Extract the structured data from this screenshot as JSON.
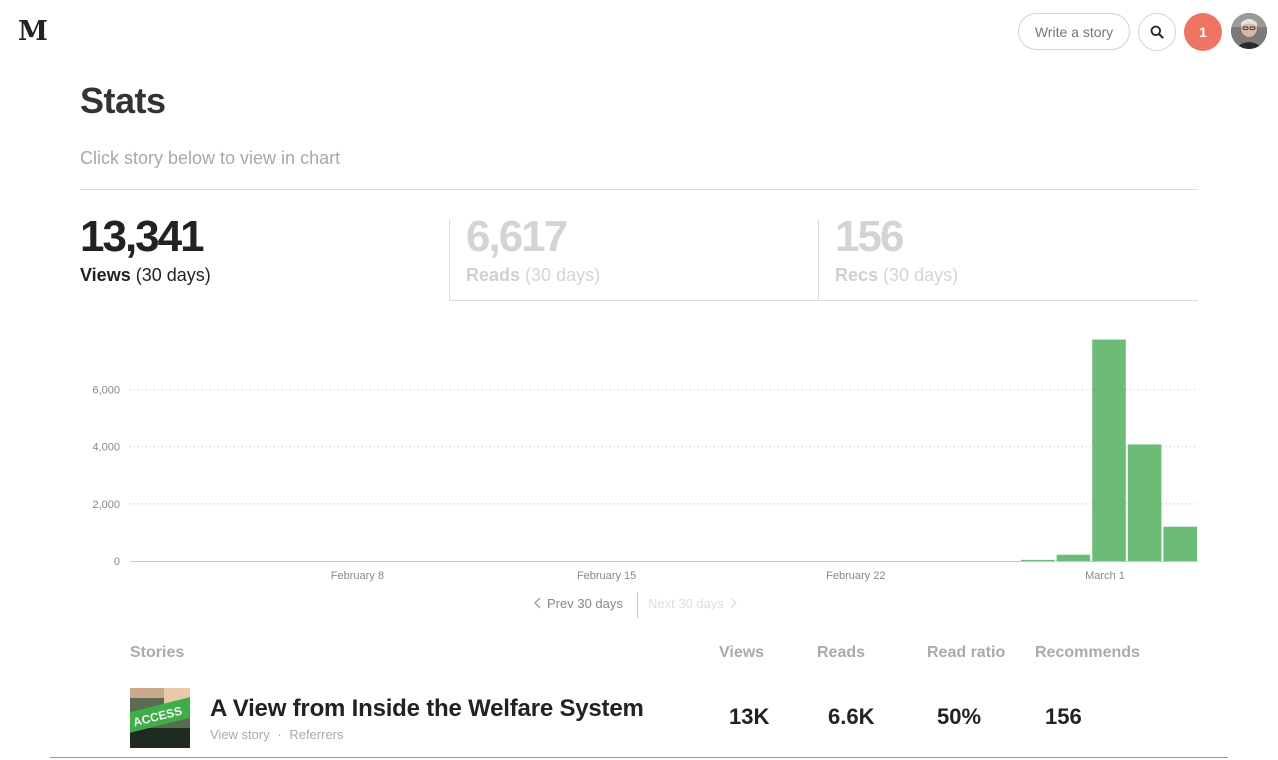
{
  "header": {
    "logo": "M",
    "write_label": "Write a story",
    "notification_count": "1",
    "icons": {
      "search": "search-icon",
      "avatar": "user-avatar"
    }
  },
  "page": {
    "title": "Stats",
    "subtitle": "Click story below to view in chart"
  },
  "stat_tabs": [
    {
      "value": "13,341",
      "label": "Views",
      "period": "(30 days)",
      "active": true
    },
    {
      "value": "6,617",
      "label": "Reads",
      "period": "(30 days)",
      "active": false
    },
    {
      "value": "156",
      "label": "Recs",
      "period": "(30 days)",
      "active": false
    }
  ],
  "chart_data": {
    "type": "bar",
    "title": "",
    "xlabel": "",
    "ylabel": "",
    "ylim": [
      0,
      7700
    ],
    "y_ticks": [
      0,
      2000,
      4000,
      6000
    ],
    "y_tick_labels": [
      "0",
      "2,000",
      "4,000",
      "6,000"
    ],
    "x_tick_labels": [
      "February 8",
      "February 15",
      "February 22",
      "March 1"
    ],
    "grid": true,
    "bar_color": "#6cbb77",
    "categories": [
      "Feb 1",
      "Feb 2",
      "Feb 3",
      "Feb 4",
      "Feb 5",
      "Feb 6",
      "Feb 7",
      "Feb 8",
      "Feb 9",
      "Feb 10",
      "Feb 11",
      "Feb 12",
      "Feb 13",
      "Feb 14",
      "Feb 15",
      "Feb 16",
      "Feb 17",
      "Feb 18",
      "Feb 19",
      "Feb 20",
      "Feb 21",
      "Feb 22",
      "Feb 23",
      "Feb 24",
      "Feb 25",
      "Feb 26",
      "Feb 27",
      "Feb 28",
      "Mar 1",
      "Mar 2",
      "Mar 3"
    ],
    "values": [
      0,
      0,
      0,
      0,
      0,
      0,
      0,
      0,
      0,
      0,
      0,
      0,
      0,
      0,
      0,
      0,
      0,
      0,
      0,
      0,
      0,
      0,
      0,
      0,
      0,
      0,
      40,
      220,
      7750,
      4080,
      1200
    ]
  },
  "pager": {
    "prev_label": "Prev 30 days",
    "next_label": "Next 30 days"
  },
  "table": {
    "headers": {
      "stories": "Stories",
      "views": "Views",
      "reads": "Reads",
      "read_ratio": "Read ratio",
      "recommends": "Recommends"
    },
    "rows": [
      {
        "title": "A View from Inside the Welfare System",
        "view_story": "View story",
        "separator": "·",
        "referrers": "Referrers",
        "thumb_text": "ACCESS",
        "views": "13K",
        "reads": "6.6K",
        "read_ratio": "50%",
        "recommends": "156"
      }
    ]
  }
}
